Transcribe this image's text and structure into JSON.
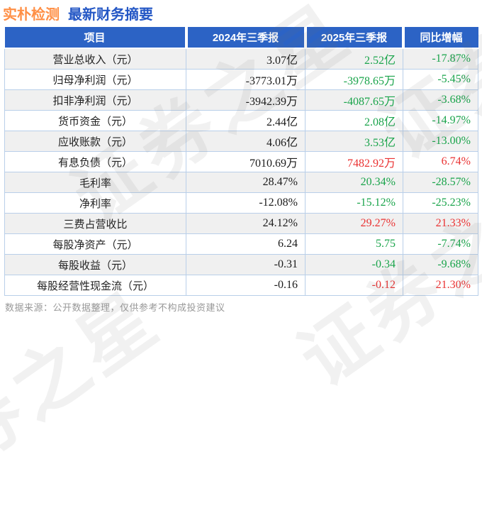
{
  "header": {
    "company": "实朴检测",
    "subtitle": "最新财务摘要"
  },
  "table": {
    "headers": [
      "项目",
      "2024年三季报",
      "2025年三季报",
      "同比增幅"
    ],
    "rows": [
      {
        "label": "营业总收入（元）",
        "v2024": "3.07亿",
        "v2025": "2.52亿",
        "v2025_color": "green",
        "yoy": "-17.87%",
        "yoy_color": "green"
      },
      {
        "label": "归母净利润（元）",
        "v2024": "-3773.01万",
        "v2025": "-3978.65万",
        "v2025_color": "green",
        "yoy": "-5.45%",
        "yoy_color": "green"
      },
      {
        "label": "扣非净利润（元）",
        "v2024": "-3942.39万",
        "v2025": "-4087.65万",
        "v2025_color": "green",
        "yoy": "-3.68%",
        "yoy_color": "green"
      },
      {
        "label": "货币资金（元）",
        "v2024": "2.44亿",
        "v2025": "2.08亿",
        "v2025_color": "green",
        "yoy": "-14.97%",
        "yoy_color": "green"
      },
      {
        "label": "应收账款（元）",
        "v2024": "4.06亿",
        "v2025": "3.53亿",
        "v2025_color": "green",
        "yoy": "-13.00%",
        "yoy_color": "green"
      },
      {
        "label": "有息负债（元）",
        "v2024": "7010.69万",
        "v2025": "7482.92万",
        "v2025_color": "red",
        "yoy": "6.74%",
        "yoy_color": "red"
      },
      {
        "label": "毛利率",
        "v2024": "28.47%",
        "v2025": "20.34%",
        "v2025_color": "green",
        "yoy": "-28.57%",
        "yoy_color": "green"
      },
      {
        "label": "净利率",
        "v2024": "-12.08%",
        "v2025": "-15.12%",
        "v2025_color": "green",
        "yoy": "-25.23%",
        "yoy_color": "green"
      },
      {
        "label": "三费占营收比",
        "v2024": "24.12%",
        "v2025": "29.27%",
        "v2025_color": "red",
        "yoy": "21.33%",
        "yoy_color": "red"
      },
      {
        "label": "每股净资产（元）",
        "v2024": "6.24",
        "v2025": "5.75",
        "v2025_color": "green",
        "yoy": "-7.74%",
        "yoy_color": "green"
      },
      {
        "label": "每股收益（元）",
        "v2024": "-0.31",
        "v2025": "-0.34",
        "v2025_color": "green",
        "yoy": "-9.68%",
        "yoy_color": "green"
      },
      {
        "label": "每股经营性现金流（元）",
        "v2024": "-0.16",
        "v2025": "-0.12",
        "v2025_color": "red",
        "yoy": "21.30%",
        "yoy_color": "red"
      }
    ]
  },
  "footer": {
    "note": "数据来源：公开数据整理，仅供参考不构成投资建议"
  },
  "watermark": {
    "text": "证券之星"
  },
  "colors": {
    "green": "#1aa44b",
    "red": "#ea3232",
    "header_bg": "#2c63c5",
    "title_company": "#ff8f45",
    "title_subtitle": "#2457c5",
    "row_alt_bg": "#f0f0f0",
    "cell_border": "#b9cfe9",
    "value_2024": "#1b1b1b",
    "footer_text": "#999999"
  },
  "chart_data": {
    "type": "table",
    "title": "实朴检测 最新财务摘要",
    "columns": [
      "项目",
      "2024年三季报",
      "2025年三季报",
      "同比增幅"
    ],
    "rows": [
      [
        "营业总收入（元）",
        "3.07亿",
        "2.52亿",
        "-17.87%"
      ],
      [
        "归母净利润（元）",
        "-3773.01万",
        "-3978.65万",
        "-5.45%"
      ],
      [
        "扣非净利润（元）",
        "-3942.39万",
        "-4087.65万",
        "-3.68%"
      ],
      [
        "货币资金（元）",
        "2.44亿",
        "2.08亿",
        "-14.97%"
      ],
      [
        "应收账款（元）",
        "4.06亿",
        "3.53亿",
        "-13.00%"
      ],
      [
        "有息负债（元）",
        "7010.69万",
        "7482.92万",
        "6.74%"
      ],
      [
        "毛利率",
        "28.47%",
        "20.34%",
        "-28.57%"
      ],
      [
        "净利率",
        "-12.08%",
        "-15.12%",
        "-25.23%"
      ],
      [
        "三费占营收比",
        "24.12%",
        "29.27%",
        "21.33%"
      ],
      [
        "每股净资产（元）",
        "6.24",
        "5.75",
        "-7.74%"
      ],
      [
        "每股收益（元）",
        "-0.31",
        "-0.34",
        "-9.68%"
      ],
      [
        "每股经营性现金流（元）",
        "-0.16",
        "-0.12",
        "21.30%"
      ]
    ]
  }
}
